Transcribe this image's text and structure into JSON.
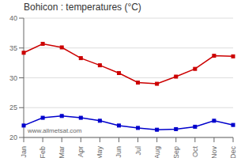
{
  "chart_data": {
    "type": "line",
    "title": "Bohicon : temperatures (°C)",
    "categories": [
      "Jan",
      "Feb",
      "Mar",
      "Apr",
      "May",
      "Jun",
      "Jul",
      "Aug",
      "Sep",
      "Oct",
      "Nov",
      "Dec"
    ],
    "series": [
      {
        "color": "#cc0000",
        "marker": "square",
        "values": [
          34.2,
          35.7,
          35.1,
          33.3,
          32.1,
          30.8,
          29.2,
          29.0,
          30.2,
          31.5,
          33.7,
          33.6
        ]
      },
      {
        "color": "#0000cc",
        "marker": "square",
        "values": [
          22.0,
          23.3,
          23.6,
          23.3,
          22.8,
          22.0,
          21.6,
          21.3,
          21.4,
          21.8,
          22.8,
          22.1
        ]
      }
    ],
    "ylim": [
      20,
      40
    ],
    "yticks": [
      20,
      25,
      30,
      35,
      40
    ],
    "grid": true,
    "annotations": [
      "www.allmetsat.com"
    ]
  }
}
